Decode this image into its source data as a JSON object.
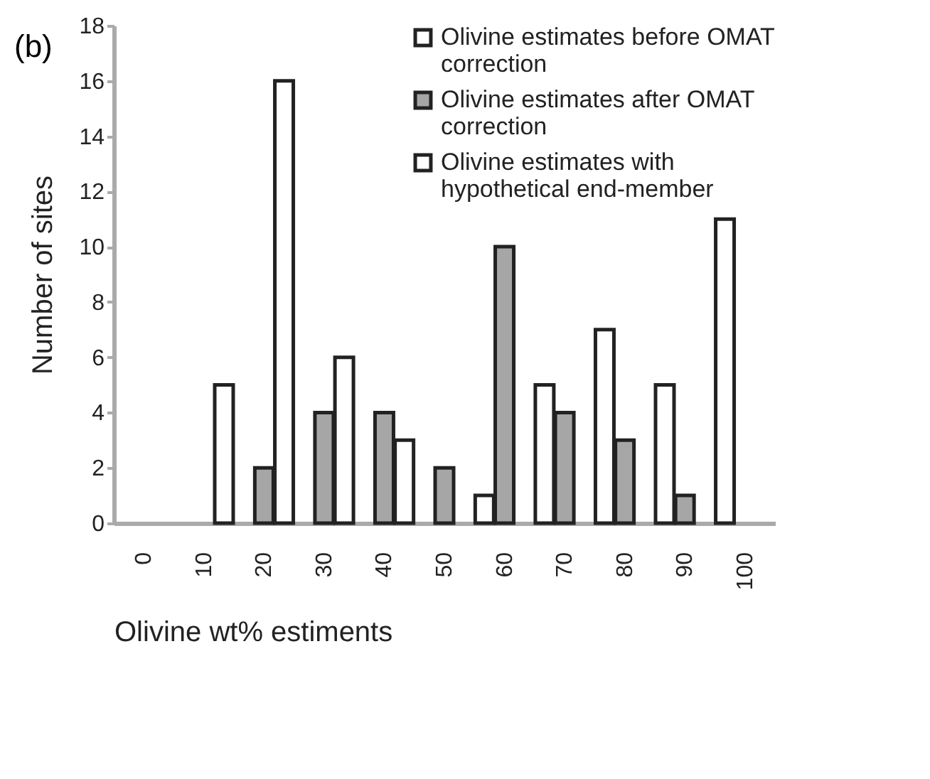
{
  "chart_data": {
    "type": "bar",
    "title": "(b)",
    "xlabel": "Olivine wt% estiments",
    "ylabel": "Number of sites",
    "categories": [
      "0",
      "10",
      "20",
      "30",
      "40",
      "50",
      "60",
      "70",
      "80",
      "90",
      "100"
    ],
    "series": [
      {
        "name": "Olivine estimates before OMAT correction",
        "color": "#ffffff",
        "values": [
          null,
          null,
          null,
          null,
          null,
          null,
          1,
          5,
          7,
          5,
          11
        ]
      },
      {
        "name": "Olivine estimates after OMAT correction",
        "color": "#a6a6a6",
        "values": [
          null,
          null,
          2,
          4,
          4,
          2,
          10,
          4,
          3,
          1,
          null
        ]
      },
      {
        "name": "Olivine estimates with hypothetical end-member",
        "color": "#ffffff",
        "values": [
          null,
          5,
          16,
          6,
          3,
          null,
          null,
          null,
          null,
          null,
          null
        ]
      }
    ],
    "ylim": [
      0,
      18
    ],
    "yticks": [
      0,
      2,
      4,
      6,
      8,
      10,
      12,
      14,
      16,
      18
    ],
    "grid": false,
    "legend": "top right"
  }
}
